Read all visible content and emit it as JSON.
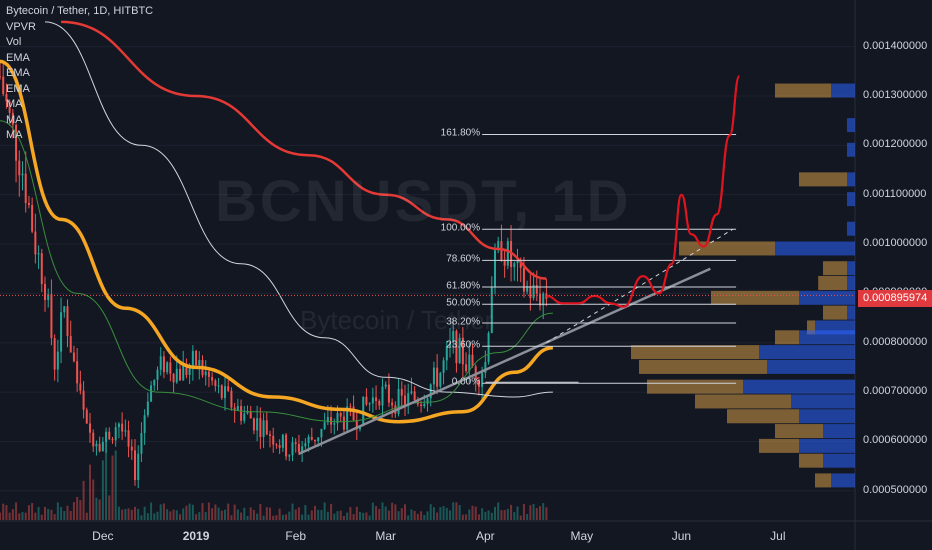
{
  "header": {
    "title": "Bytecoin / Tether, 1D, HITBTC",
    "indicators": [
      "VPVR",
      "Vol",
      "EMA",
      "EMA",
      "EMA",
      "MA",
      "MA",
      "MA"
    ]
  },
  "watermark": {
    "symbol": "BCNUSDT, 1D",
    "name": "Bytecoin / Tether"
  },
  "last_price": "0.000895974",
  "colors": {
    "background": "#131722",
    "up": "#26a69a",
    "down": "#ef5350",
    "ema_orange": "#f5a623",
    "ma_red": "#e53935",
    "ma_white": "#d1d4dc",
    "ema_green": "#388e3c",
    "projection": "#e0141e",
    "vpvr_up": "#2962ff",
    "vpvr_down": "#ffb74d"
  },
  "chart_data": {
    "type": "candlestick",
    "y_scale": "linear",
    "ylim": [
      0.000455,
      0.001458
    ],
    "y_ticks": [
      "0.001400000",
      "0.001300000",
      "0.001200000",
      "0.001100000",
      "0.001000000",
      "0.000900000",
      "0.000800000",
      "0.000700000",
      "0.000600000",
      "0.000500000"
    ],
    "x_ticks": [
      "Dec",
      "2019",
      "Feb",
      "Mar",
      "Apr",
      "May",
      "Jun",
      "Jul"
    ],
    "date_range": [
      "2018-11-01",
      "2019-07-25"
    ],
    "price_path": [
      {
        "date": "2018-11-01",
        "price": 0.00134
      },
      {
        "date": "2018-11-04",
        "price": 0.00125
      },
      {
        "date": "2018-11-08",
        "price": 0.00115
      },
      {
        "date": "2018-11-12",
        "price": 0.001
      },
      {
        "date": "2018-11-15",
        "price": 0.00092
      },
      {
        "date": "2018-11-18",
        "price": 0.00076
      },
      {
        "date": "2018-11-21",
        "price": 0.00087
      },
      {
        "date": "2018-11-25",
        "price": 0.00072
      },
      {
        "date": "2018-11-28",
        "price": 0.00062
      },
      {
        "date": "2018-12-03",
        "price": 0.0006
      },
      {
        "date": "2018-12-08",
        "price": 0.00064
      },
      {
        "date": "2018-12-13",
        "price": 0.00054
      },
      {
        "date": "2018-12-17",
        "price": 0.0007
      },
      {
        "date": "2018-12-22",
        "price": 0.00076
      },
      {
        "date": "2018-12-27",
        "price": 0.00074
      },
      {
        "date": "2019-01-01",
        "price": 0.00076
      },
      {
        "date": "2019-01-08",
        "price": 0.0007
      },
      {
        "date": "2019-01-15",
        "price": 0.00066
      },
      {
        "date": "2019-01-22",
        "price": 0.00063
      },
      {
        "date": "2019-01-30",
        "price": 0.00058
      },
      {
        "date": "2019-02-05",
        "price": 0.0006
      },
      {
        "date": "2019-02-12",
        "price": 0.00064
      },
      {
        "date": "2019-02-20",
        "price": 0.00065
      },
      {
        "date": "2019-02-27",
        "price": 0.0007
      },
      {
        "date": "2019-03-05",
        "price": 0.00068
      },
      {
        "date": "2019-03-12",
        "price": 0.00069
      },
      {
        "date": "2019-03-18",
        "price": 0.00074
      },
      {
        "date": "2019-03-22",
        "price": 0.0008
      },
      {
        "date": "2019-03-26",
        "price": 0.00076
      },
      {
        "date": "2019-03-30",
        "price": 0.00074
      },
      {
        "date": "2019-04-01",
        "price": 0.00076
      },
      {
        "date": "2019-04-03",
        "price": 0.00093
      },
      {
        "date": "2019-04-06",
        "price": 0.001
      },
      {
        "date": "2019-04-09",
        "price": 0.00096
      },
      {
        "date": "2019-04-12",
        "price": 0.00092
      },
      {
        "date": "2019-04-16",
        "price": 0.0009
      },
      {
        "date": "2019-04-20",
        "price": 0.000896
      }
    ],
    "volume_range": "low relative volume, spike in late November",
    "moving_averages": [
      {
        "name": "EMA",
        "color": "#f5a623",
        "values": [
          {
            "date": "2018-11-01",
            "price": 0.00137
          },
          {
            "date": "2018-11-20",
            "price": 0.00105
          },
          {
            "date": "2018-12-10",
            "price": 0.00087
          },
          {
            "date": "2019-01-01",
            "price": 0.00075
          },
          {
            "date": "2019-01-25",
            "price": 0.00069
          },
          {
            "date": "2019-02-15",
            "price": 0.000665
          },
          {
            "date": "2019-03-05",
            "price": 0.00064
          },
          {
            "date": "2019-03-25",
            "price": 0.00066
          },
          {
            "date": "2019-04-10",
            "price": 0.00074
          },
          {
            "date": "2019-04-22",
            "price": 0.00079
          }
        ]
      },
      {
        "name": "MA",
        "color": "#e53935",
        "values": [
          {
            "date": "2018-11-20",
            "price": 0.00145
          },
          {
            "date": "2019-01-01",
            "price": 0.0013
          },
          {
            "date": "2019-02-05",
            "price": 0.00118
          },
          {
            "date": "2019-03-01",
            "price": 0.0011
          },
          {
            "date": "2019-03-20",
            "price": 0.00105
          },
          {
            "date": "2019-04-05",
            "price": 0.00099
          },
          {
            "date": "2019-04-20",
            "price": 0.00093
          }
        ]
      },
      {
        "name": "MA",
        "color": "#d1d4dc",
        "values": [
          {
            "date": "2018-11-15",
            "price": 0.00145
          },
          {
            "date": "2018-12-15",
            "price": 0.0012
          },
          {
            "date": "2019-01-15",
            "price": 0.00096
          },
          {
            "date": "2019-02-10",
            "price": 0.00081
          },
          {
            "date": "2019-03-01",
            "price": 0.00073
          },
          {
            "date": "2019-03-20",
            "price": 0.0007
          },
          {
            "date": "2019-04-10",
            "price": 0.00069
          },
          {
            "date": "2019-04-22",
            "price": 0.0007
          }
        ]
      },
      {
        "name": "EMA",
        "color": "#388e3c",
        "values": [
          {
            "date": "2018-11-01",
            "price": 0.00125
          },
          {
            "date": "2018-11-25",
            "price": 0.0009
          },
          {
            "date": "2018-12-20",
            "price": 0.0007
          },
          {
            "date": "2019-01-20",
            "price": 0.00066
          },
          {
            "date": "2019-02-15",
            "price": 0.00064
          },
          {
            "date": "2019-03-15",
            "price": 0.00068
          },
          {
            "date": "2019-04-05",
            "price": 0.00078
          },
          {
            "date": "2019-04-22",
            "price": 0.00086
          }
        ]
      }
    ],
    "fibonacci": {
      "levels": [
        {
          "label": "161.80%",
          "price": 0.001222
        },
        {
          "label": "100.00%",
          "price": 0.00103
        },
        {
          "label": "78.60%",
          "price": 0.000967
        },
        {
          "label": "61.80%",
          "price": 0.000913
        },
        {
          "label": "50.00%",
          "price": 0.000878
        },
        {
          "label": "38.20%",
          "price": 0.00084
        },
        {
          "label": "23.60%",
          "price": 0.000793
        },
        {
          "label": "0.00%",
          "price": 0.000718
        }
      ],
      "start_date": "2019-03-31",
      "end_date": "2019-06-18"
    },
    "trendlines": [
      {
        "from": {
          "date": "2019-02-02",
          "price": 0.000575
        },
        "to": {
          "date": "2019-06-10",
          "price": 0.00095
        }
      },
      {
        "from": {
          "date": "2019-04-01",
          "price": 0.00072
        },
        "to": {
          "date": "2019-04-30",
          "price": 0.00072
        }
      }
    ],
    "projection_path": [
      {
        "date": "2019-04-20",
        "price": 0.000895
      },
      {
        "date": "2019-04-25",
        "price": 0.00088
      },
      {
        "date": "2019-04-30",
        "price": 0.00088
      },
      {
        "date": "2019-05-05",
        "price": 0.000895
      },
      {
        "date": "2019-05-10",
        "price": 0.00088
      },
      {
        "date": "2019-05-14",
        "price": 0.000873
      },
      {
        "date": "2019-05-20",
        "price": 0.000935
      },
      {
        "date": "2019-05-25",
        "price": 0.0009
      },
      {
        "date": "2019-05-29",
        "price": 0.00096
      },
      {
        "date": "2019-06-01",
        "price": 0.0011
      },
      {
        "date": "2019-06-04",
        "price": 0.00102
      },
      {
        "date": "2019-06-08",
        "price": 0.000995
      },
      {
        "date": "2019-06-12",
        "price": 0.00106
      },
      {
        "date": "2019-06-16",
        "price": 0.00122
      },
      {
        "date": "2019-06-19",
        "price": 0.00134
      }
    ],
    "projection_dashed": {
      "from": {
        "date": "2019-04-20",
        "price": 0.0008
      },
      "to": {
        "date": "2019-06-17",
        "price": 0.00103
      }
    },
    "volume_profile": [
      {
        "price": 0.00131,
        "up": 0.15,
        "down": 0.35
      },
      {
        "price": 0.00124,
        "up": 0.05,
        "down": 0.0
      },
      {
        "price": 0.00119,
        "up": 0.05,
        "down": 0.0
      },
      {
        "price": 0.00113,
        "up": 0.05,
        "down": 0.3
      },
      {
        "price": 0.00109,
        "up": 0.05,
        "down": 0.0
      },
      {
        "price": 0.00103,
        "up": 0.05,
        "down": 0.0
      },
      {
        "price": 0.00099,
        "up": 0.5,
        "down": 0.6
      },
      {
        "price": 0.00095,
        "up": 0.05,
        "down": 0.15
      },
      {
        "price": 0.00092,
        "up": 0.05,
        "down": 0.18
      },
      {
        "price": 0.00089,
        "up": 0.35,
        "down": 0.55
      },
      {
        "price": 0.00086,
        "up": 0.05,
        "down": 0.15
      },
      {
        "price": 0.00083,
        "up": 0.25,
        "down": 0.05
      },
      {
        "price": 0.00081,
        "up": 0.35,
        "down": 0.15
      },
      {
        "price": 0.00078,
        "up": 0.6,
        "down": 0.8
      },
      {
        "price": 0.00075,
        "up": 0.55,
        "down": 0.8
      },
      {
        "price": 0.00071,
        "up": 0.7,
        "down": 0.6
      },
      {
        "price": 0.00068,
        "up": 0.4,
        "down": 0.6
      },
      {
        "price": 0.00065,
        "up": 0.35,
        "down": 0.45
      },
      {
        "price": 0.00062,
        "up": 0.2,
        "down": 0.3
      },
      {
        "price": 0.00059,
        "up": 0.35,
        "down": 0.25
      },
      {
        "price": 0.00056,
        "up": 0.2,
        "down": 0.15
      },
      {
        "price": 0.00052,
        "up": 0.15,
        "down": 0.1
      }
    ]
  }
}
